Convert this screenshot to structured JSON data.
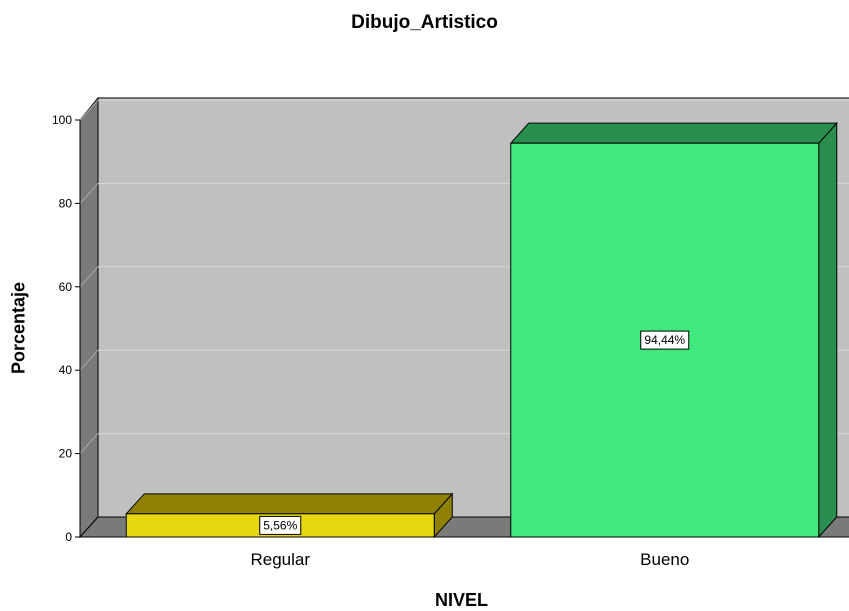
{
  "chart_data": {
    "type": "bar",
    "title": "Dibujo_Artistico",
    "xlabel": "NIVEL",
    "ylabel": "Porcentaje",
    "ylim": [
      0,
      100
    ],
    "yticks": [
      0,
      20,
      40,
      60,
      80,
      100
    ],
    "categories": [
      "Regular",
      "Bueno"
    ],
    "values": [
      5.56,
      94.44
    ],
    "data_labels": [
      "5,56%",
      "94,44%"
    ],
    "colors": [
      "#e6d80e",
      "#41ea7d"
    ],
    "side_colors": [
      "#8f8106",
      "#2a8f4e"
    ],
    "background_color": "#c0c0c0",
    "grid": true,
    "three_d": true,
    "legend": "none"
  }
}
